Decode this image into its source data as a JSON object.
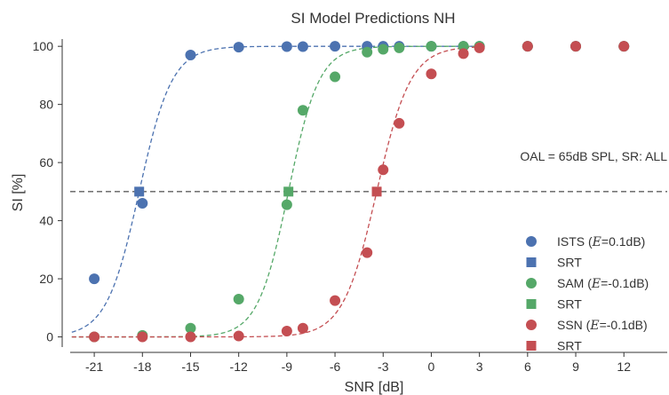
{
  "chart_data": {
    "type": "scatter",
    "title": "SI Model Predictions NH",
    "xlabel": "SNR [dB]",
    "ylabel": "SI [%]",
    "xlim": [
      -22.5,
      14.7
    ],
    "ylim": [
      -3.5,
      102.5
    ],
    "x_ticks": [
      -21,
      -18,
      -15,
      -12,
      -9,
      -6,
      -3,
      0,
      3,
      6,
      9,
      12
    ],
    "y_ticks": [
      0,
      20,
      40,
      60,
      80,
      100
    ],
    "grid": false,
    "legend_position": "right",
    "annotation": "OAL = 65dB SPL, SR: ALL",
    "reference_line": {
      "y": 50,
      "style": "dashed",
      "color": "#222222"
    },
    "series": [
      {
        "name": "ISTS (E=0.1dB)",
        "name_prefix": "ISTS (",
        "name_symbol": "E",
        "name_suffix": "=0.1dB)",
        "color": "#4c72b0",
        "x": [
          -21,
          -18,
          -15,
          -12,
          -9,
          -8,
          -6,
          -4,
          -3,
          -2,
          0,
          2,
          3,
          6,
          9,
          12
        ],
        "y": [
          20,
          46,
          97,
          99.7,
          99.9,
          99.9,
          100,
          100,
          100,
          100,
          100,
          100,
          100,
          100,
          100,
          100
        ],
        "fit": {
          "midpoint": -18.2,
          "slope": 0.98
        },
        "srt": {
          "label": "SRT",
          "x": -18.2,
          "y": 50
        }
      },
      {
        "name": "SAM (E=-0.1dB)",
        "name_prefix": "SAM (",
        "name_symbol": "E",
        "name_suffix": "=-0.1dB)",
        "color": "#55a868",
        "x": [
          -21,
          -18,
          -15,
          -12,
          -9,
          -8,
          -6,
          -4,
          -3,
          -2,
          0,
          2,
          3,
          6,
          9,
          12
        ],
        "y": [
          0,
          0.5,
          3,
          13,
          45.5,
          78,
          89.5,
          98,
          99,
          99.5,
          100,
          100,
          100,
          100,
          100,
          100
        ],
        "fit": {
          "midpoint": -8.9,
          "slope": 1.05
        },
        "srt": {
          "label": "SRT",
          "x": -8.9,
          "y": 50
        }
      },
      {
        "name": "SSN (E=-0.1dB)",
        "name_prefix": "SSN (",
        "name_symbol": "E",
        "name_suffix": "=-0.1dB)",
        "color": "#c44e52",
        "x": [
          -21,
          -18,
          -15,
          -12,
          -9,
          -8,
          -6,
          -4,
          -3,
          -2,
          0,
          2,
          3,
          6,
          9,
          12
        ],
        "y": [
          0,
          0,
          0,
          0.3,
          2,
          3,
          12.5,
          29,
          57.5,
          73.5,
          90.5,
          97.5,
          99.5,
          100,
          100,
          100
        ],
        "fit": {
          "midpoint": -3.4,
          "slope": 0.95
        },
        "srt": {
          "label": "SRT",
          "x": -3.4,
          "y": 50
        }
      }
    ]
  }
}
